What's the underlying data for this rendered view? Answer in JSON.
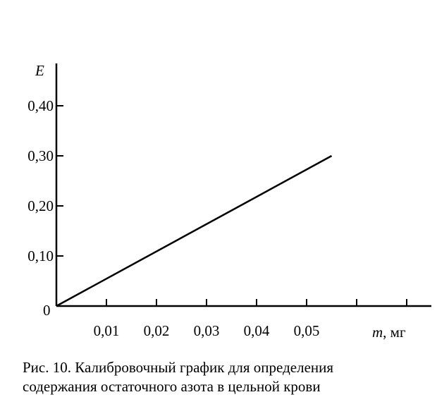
{
  "chart_data": {
    "type": "line",
    "y_axis_label": "E",
    "x_axis_label_var": "m",
    "x_axis_label_unit": ", мг",
    "origin_label": "0",
    "x_ticks": [
      {
        "value": 0.01,
        "label": "0,01"
      },
      {
        "value": 0.02,
        "label": "0,02"
      },
      {
        "value": 0.03,
        "label": "0,03"
      },
      {
        "value": 0.04,
        "label": "0,04"
      },
      {
        "value": 0.05,
        "label": "0,05"
      }
    ],
    "x_extra_ticks": [
      0.06,
      0.07
    ],
    "y_ticks": [
      {
        "value": 0.1,
        "label": "0,10"
      },
      {
        "value": 0.2,
        "label": "0,20"
      },
      {
        "value": 0.3,
        "label": "0,30"
      },
      {
        "value": 0.4,
        "label": "0,40"
      }
    ],
    "xlim": [
      0,
      0.075
    ],
    "ylim": [
      0,
      0.5
    ],
    "grid": false,
    "series": [
      {
        "x": [
          0,
          0.055
        ],
        "y": [
          0,
          0.3
        ]
      }
    ]
  },
  "caption": {
    "line1": "Рис. 10. Калибровочный график для определения",
    "line2": "содержания остаточного азота в цельной крови"
  }
}
